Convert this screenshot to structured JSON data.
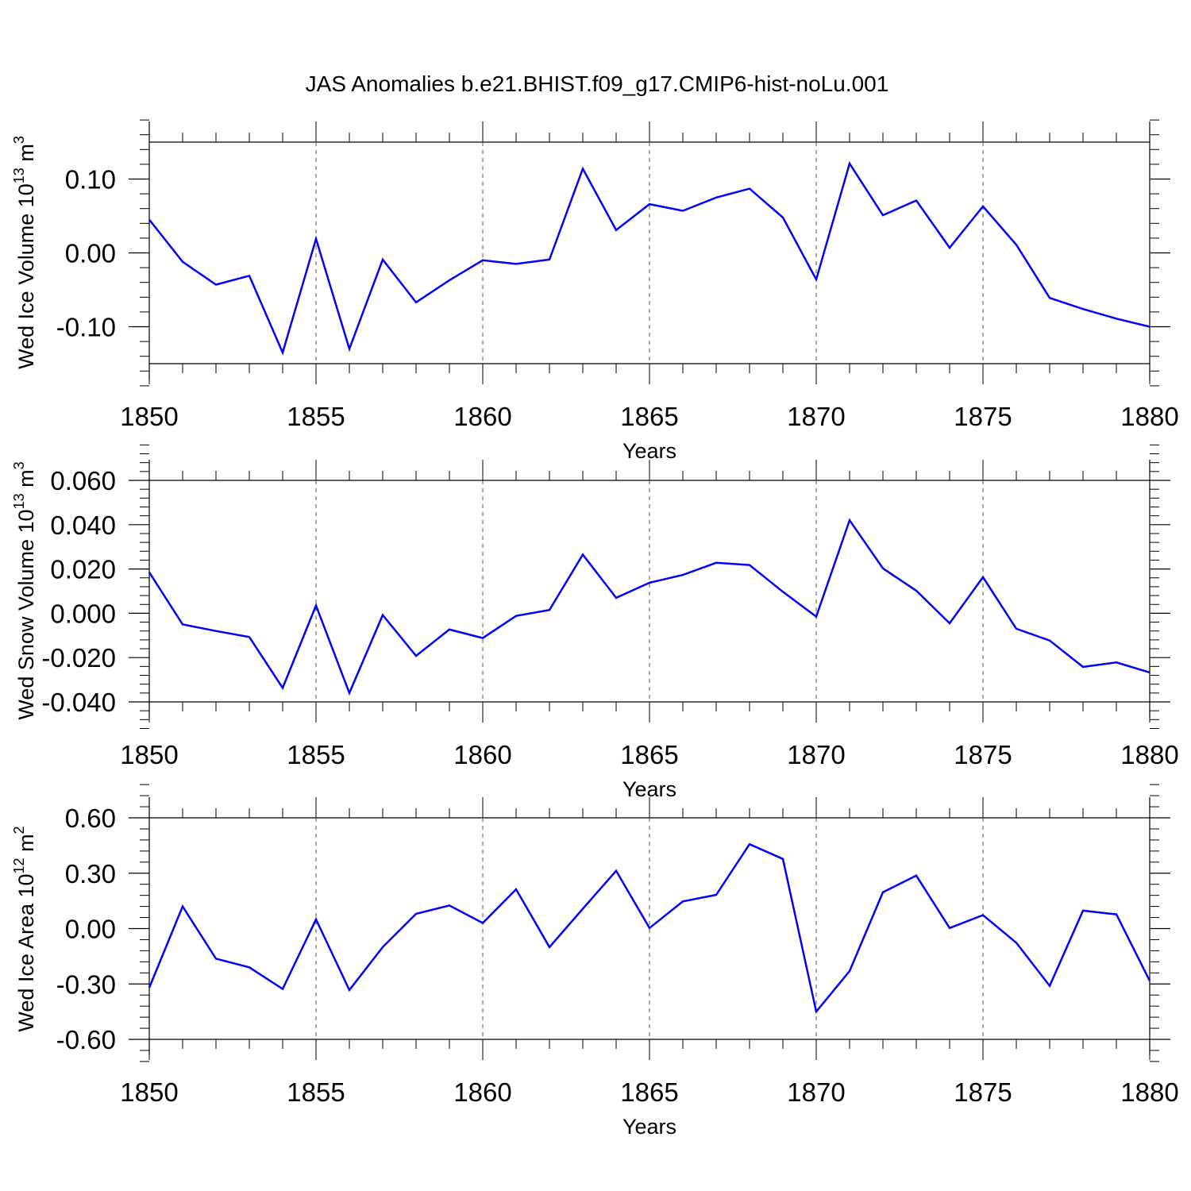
{
  "figure": {
    "title": "JAS Anomalies b.e21.BHIST.f09_g17.CMIP6-hist-noLu.001",
    "line_color": "#0000ff",
    "grid_color": "#555555"
  },
  "chart_data": [
    {
      "type": "line",
      "ylabel_main": "Wed Ice Volume 10",
      "ylabel_exp": "13",
      "ylabel_unit": " m",
      "ylabel_unit_exp": "3",
      "xlabel": "Years",
      "xlim": [
        1850,
        1880
      ],
      "ylim": [
        -0.15,
        0.15
      ],
      "xticks": [
        "1850",
        "1855",
        "1860",
        "1865",
        "1870",
        "1875",
        "1880"
      ],
      "yticks": [
        {
          "value": 0.1,
          "label": "0.10"
        },
        {
          "value": 0.0,
          "label": "0.00"
        },
        {
          "value": -0.1,
          "label": "-0.10"
        }
      ],
      "x": [
        1850,
        1851,
        1852,
        1853,
        1854,
        1855,
        1856,
        1857,
        1858,
        1859,
        1860,
        1861,
        1862,
        1863,
        1864,
        1865,
        1866,
        1867,
        1868,
        1869,
        1870,
        1871,
        1872,
        1873,
        1874,
        1875,
        1876,
        1877,
        1878,
        1879,
        1880
      ],
      "values": [
        0.045,
        -0.012,
        -0.043,
        -0.031,
        -0.135,
        0.019,
        -0.13,
        -0.009,
        -0.067,
        -0.037,
        -0.01,
        -0.015,
        -0.009,
        0.114,
        0.031,
        0.066,
        0.057,
        0.075,
        0.087,
        0.048,
        -0.036,
        0.121,
        0.051,
        0.071,
        0.007,
        0.063,
        0.011,
        -0.061,
        -0.076,
        -0.089,
        -0.1
      ]
    },
    {
      "type": "line",
      "ylabel_main": "Wed Snow Volume 10",
      "ylabel_exp": "13",
      "ylabel_unit": " m",
      "ylabel_unit_exp": "3",
      "xlabel": "Years",
      "xlim": [
        1850,
        1880
      ],
      "ylim": [
        -0.04,
        0.06
      ],
      "xticks": [
        "1850",
        "1855",
        "1860",
        "1865",
        "1870",
        "1875",
        "1880"
      ],
      "yticks": [
        {
          "value": 0.06,
          "label": "0.060"
        },
        {
          "value": 0.04,
          "label": "0.040"
        },
        {
          "value": 0.02,
          "label": "0.020"
        },
        {
          "value": 0.0,
          "label": "0.000"
        },
        {
          "value": -0.02,
          "label": "-0.020"
        },
        {
          "value": -0.04,
          "label": "-0.040"
        }
      ],
      "x": [
        1850,
        1851,
        1852,
        1853,
        1854,
        1855,
        1856,
        1857,
        1858,
        1859,
        1860,
        1861,
        1862,
        1863,
        1864,
        1865,
        1866,
        1867,
        1868,
        1869,
        1870,
        1871,
        1872,
        1873,
        1874,
        1875,
        1876,
        1877,
        1878,
        1879,
        1880
      ],
      "values": [
        0.0185,
        -0.005,
        -0.008,
        -0.0107,
        -0.0337,
        0.0035,
        -0.036,
        -0.0008,
        -0.0192,
        -0.0073,
        -0.0112,
        -0.0012,
        0.0015,
        0.0265,
        0.007,
        0.0138,
        0.0173,
        0.0228,
        0.0218,
        0.0097,
        -0.0015,
        0.042,
        0.0203,
        0.0102,
        -0.0045,
        0.0163,
        -0.007,
        -0.0123,
        -0.0242,
        -0.0222,
        -0.0267
      ]
    },
    {
      "type": "line",
      "ylabel_main": "Wed Ice Area 10",
      "ylabel_exp": "12",
      "ylabel_unit": " m",
      "ylabel_unit_exp": "2",
      "xlabel": "Years",
      "xlim": [
        1850,
        1880
      ],
      "ylim": [
        -0.6,
        0.6
      ],
      "xticks": [
        "1850",
        "1855",
        "1860",
        "1865",
        "1870",
        "1875",
        "1880"
      ],
      "yticks": [
        {
          "value": 0.6,
          "label": "0.60"
        },
        {
          "value": 0.3,
          "label": "0.30"
        },
        {
          "value": 0.0,
          "label": "0.00"
        },
        {
          "value": -0.3,
          "label": "-0.30"
        },
        {
          "value": -0.6,
          "label": "-0.60"
        }
      ],
      "x": [
        1850,
        1851,
        1852,
        1853,
        1854,
        1855,
        1856,
        1857,
        1858,
        1859,
        1860,
        1861,
        1862,
        1863,
        1864,
        1865,
        1866,
        1867,
        1868,
        1869,
        1870,
        1871,
        1872,
        1873,
        1874,
        1875,
        1876,
        1877,
        1878,
        1879,
        1880
      ],
      "values": [
        -0.32,
        0.12,
        -0.163,
        -0.21,
        -0.327,
        0.05,
        -0.333,
        -0.1,
        0.08,
        0.125,
        0.03,
        0.213,
        -0.1,
        0.107,
        0.313,
        0.003,
        0.147,
        0.183,
        0.457,
        0.377,
        -0.45,
        -0.23,
        0.197,
        0.287,
        0.003,
        0.073,
        -0.077,
        -0.31,
        0.097,
        0.077,
        -0.283
      ]
    }
  ]
}
